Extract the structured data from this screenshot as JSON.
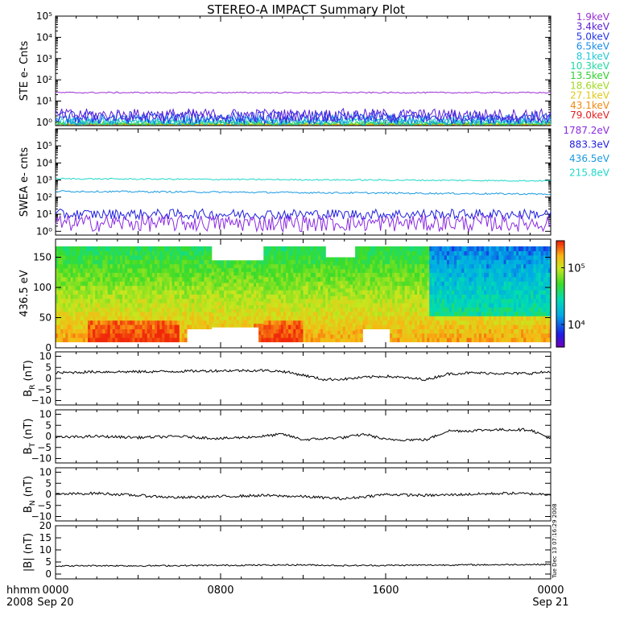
{
  "title": "STEREO-A IMPACT Summary Plot",
  "time_axis": {
    "labels": [
      {
        "hhmm": "0000",
        "date": "Sep 20",
        "hour": 0
      },
      {
        "hhmm": "0800",
        "date": "",
        "hour": 8
      },
      {
        "hhmm": "1600",
        "date": "",
        "hour": 16
      },
      {
        "hhmm": "0000",
        "date": "Sep 21",
        "hour": 24
      }
    ],
    "row1_label": "hhmm",
    "row2_label": "2008",
    "range_hours": [
      0,
      24
    ]
  },
  "timestamp": "Tue Dec 13 07:16:29 2008",
  "colorbar": {
    "labels": [
      {
        "text": "10⁵",
        "value": 100000
      },
      {
        "text": "10⁴",
        "value": 10000
      }
    ],
    "range": [
      4000,
      300000
    ],
    "scale": "log"
  },
  "chart_data": [
    {
      "type": "line",
      "name": "ste",
      "ylabel": "STE e- Cnts",
      "yscale": "log",
      "ylim": [
        0.7,
        100000
      ],
      "ytick_labels": [
        "10⁰",
        "10¹",
        "10²",
        "10³",
        "10⁴",
        "10⁵"
      ],
      "ytick_values": [
        1,
        10,
        100,
        1000,
        10000,
        100000
      ],
      "x_unit": "hours since 2008-09-20 00:00",
      "series": [
        {
          "name": "1.9keV",
          "color": "#9a2fd6",
          "level": 25,
          "noise": 0.03
        },
        {
          "name": "3.4keV",
          "color": "#5a1fd8",
          "level": 2.2,
          "noise": 0.3
        },
        {
          "name": "5.0keV",
          "color": "#2233e8",
          "level": 1.7,
          "noise": 0.3
        },
        {
          "name": "6.5keV",
          "color": "#1a8ce8",
          "level": 1.3,
          "noise": 0.25
        },
        {
          "name": "8.1keV",
          "color": "#20c8d8",
          "level": 1.1,
          "noise": 0.2
        },
        {
          "name": "10.3keV",
          "color": "#20d8a0",
          "level": 1.0,
          "noise": 0.15
        },
        {
          "name": "13.5keV",
          "color": "#30d030",
          "level": 0.9,
          "noise": 0.1
        },
        {
          "name": "18.6keV",
          "color": "#a0d820",
          "level": 0.85,
          "noise": 0.05
        },
        {
          "name": "27.1keV",
          "color": "#e0c81a",
          "level": 0.8,
          "noise": 0.02
        },
        {
          "name": "43.1keV",
          "color": "#f08a10",
          "level": 0.78,
          "noise": 0.02
        },
        {
          "name": "79.0keV",
          "color": "#e82020",
          "level": 0.76,
          "noise": 0.02
        }
      ]
    },
    {
      "type": "line",
      "name": "swea",
      "ylabel": "SWEA e- cnts",
      "yscale": "log",
      "ylim": [
        0.6,
        1000000
      ],
      "ytick_labels": [
        "10⁰",
        "10¹",
        "10²",
        "10³",
        "10⁴",
        "10⁵"
      ],
      "ytick_values": [
        1,
        10,
        100,
        1000,
        10000,
        100000
      ],
      "series": [
        {
          "name": "1787.2eV",
          "color": "#8a2be2",
          "level": 3,
          "noise": 0.5
        },
        {
          "name": "883.3eV",
          "color": "#1f1fe0",
          "level": 10,
          "noise": 0.3
        },
        {
          "name": "436.5eV",
          "color": "#1a9ae0",
          "level": 220,
          "noise": 0.05,
          "end": 150
        },
        {
          "name": "215.8eV",
          "color": "#20d8c8",
          "level": 1200,
          "noise": 0.04,
          "end": 900
        }
      ]
    },
    {
      "type": "heatmap",
      "name": "pad",
      "ylabel": "436.5 eV",
      "ylim": [
        0,
        180
      ],
      "ytick_values": [
        0,
        50,
        100,
        150
      ],
      "ytick_labels": [
        "0",
        "50",
        "100",
        "150"
      ]
    },
    {
      "type": "line",
      "name": "br",
      "ylabel": "B",
      "ylabel_sub": "R",
      "ylabel_unit": "(nT)",
      "ylim": [
        -12,
        12
      ],
      "ytick_values": [
        10,
        5,
        0,
        -5,
        -10
      ],
      "ytick_labels": [
        "10",
        "5",
        "0",
        "−5",
        "−10"
      ],
      "x_hours": [
        0,
        2,
        4,
        6,
        8,
        10,
        11,
        12,
        13,
        14,
        15,
        16,
        17,
        18,
        19,
        20,
        21,
        22,
        23,
        24
      ],
      "y_values": [
        2.5,
        3,
        3,
        3.2,
        3.5,
        3.6,
        3.2,
        1.5,
        -0.5,
        -0.3,
        0.5,
        1,
        0.2,
        -0.5,
        2,
        2.5,
        2.4,
        2.2,
        2.3,
        3
      ]
    },
    {
      "type": "line",
      "name": "bt",
      "ylabel": "B",
      "ylabel_sub": "T",
      "ylabel_unit": "(nT)",
      "ylim": [
        -12,
        12
      ],
      "ytick_values": [
        10,
        5,
        0,
        -5,
        -10
      ],
      "ytick_labels": [
        "10",
        "5",
        "0",
        "−5",
        "−10"
      ],
      "x_hours": [
        0,
        2,
        4,
        6,
        8,
        10,
        11,
        12,
        13,
        14,
        15,
        16,
        17,
        18,
        19,
        20,
        21,
        22,
        23,
        24
      ],
      "y_values": [
        -0.5,
        0,
        -0.5,
        0,
        -1,
        0,
        1,
        -1.5,
        -1,
        -0.5,
        1,
        -1.5,
        -1.5,
        -1.5,
        2.5,
        2.5,
        3,
        3,
        3,
        -1
      ]
    },
    {
      "type": "line",
      "name": "bn",
      "ylabel": "B",
      "ylabel_sub": "N",
      "ylabel_unit": "(nT)",
      "ylim": [
        -12,
        12
      ],
      "ytick_values": [
        10,
        5,
        0,
        -5,
        -10
      ],
      "ytick_labels": [
        "10",
        "5",
        "0",
        "−5",
        "−10"
      ],
      "x_hours": [
        0,
        2,
        4,
        6,
        8,
        10,
        12,
        14,
        15,
        16,
        18,
        20,
        22,
        24
      ],
      "y_values": [
        0,
        0.5,
        -0.5,
        -1.5,
        -1,
        -0.5,
        -1,
        -2,
        -1,
        0,
        -0.5,
        0,
        0.5,
        0
      ]
    },
    {
      "type": "line",
      "name": "bmag",
      "ylabel": "|B|",
      "ylabel_unit": "(nT)",
      "ylim": [
        -2,
        20
      ],
      "ytick_values": [
        20,
        15,
        10,
        5,
        0
      ],
      "ytick_labels": [
        "20",
        "15",
        "10",
        "5",
        "0"
      ],
      "x_hours": [
        0,
        2,
        4,
        6,
        8,
        10,
        12,
        14,
        16,
        18,
        20,
        22,
        24
      ],
      "y_values": [
        3.3,
        3.5,
        3.4,
        3.5,
        3.6,
        3.7,
        3.8,
        3.5,
        3.6,
        3.7,
        3.8,
        3.9,
        4
      ]
    }
  ]
}
